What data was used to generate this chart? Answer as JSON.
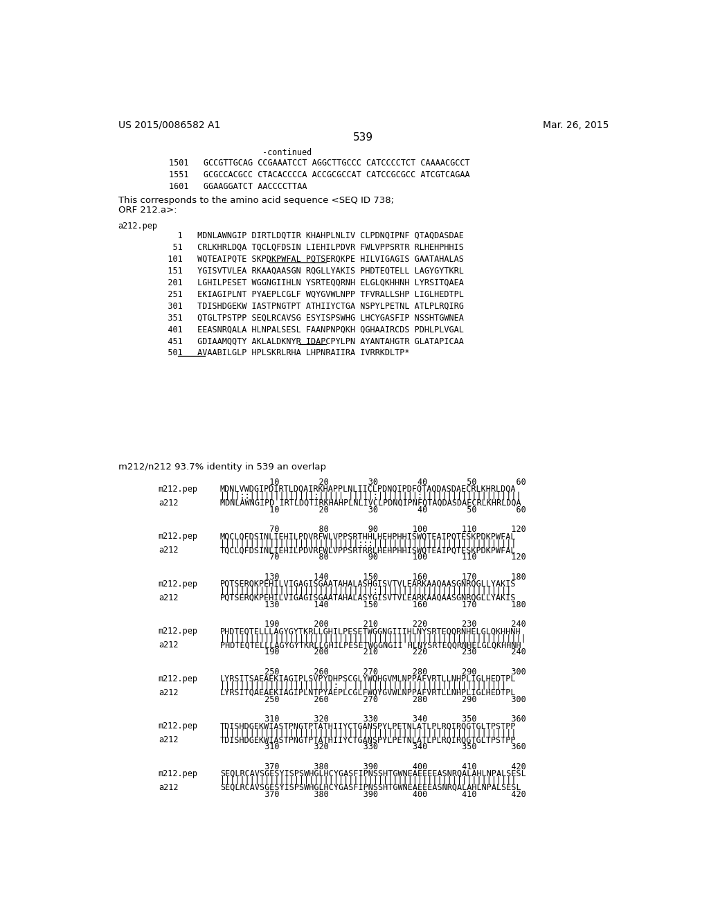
{
  "background_color": "#ffffff",
  "header_left": "US 2015/0086582 A1",
  "header_right": "Mar. 26, 2015",
  "page_number": "539",
  "continued_label": "-continued",
  "sequence_lines": [
    "1501   GCCGTTGCAG CCGAAATCCT AGGCTTGCCC CATCCCCTCT CAAAACGCCT",
    "1551   GCGCCACGCC CTACACCCCA ACCGCGCCAT CATCCGCGCC ATCGTCAGAA",
    "1601   GGAAGGATCT AACCCCTTAA"
  ],
  "paragraph_line1": "This corresponds to the amino acid sequence <SEQ ID 738;",
  "paragraph_line2": "ORF 212.a>:",
  "seq_label": "a212.pep",
  "seq_entries": [
    "     1   MDNLAWNGIP DIRTLDQTIR KHAHPLNLIV CLPDNQIPNF QTAQDASDAE",
    "    51   CRLKHRLDQA TQCLQFDSIN LIEHILPDVR FWLVPPSRTR RLHEHPHHIS",
    "   101   WQTEAIPQTE SKPDKPWFAL PQTSERQKPE HILVIGAGIS GAATAHALAS",
    "   151   YGISVTVLEA RKAAQAASGN RQGLLYAKIS PHDTEQTELL LAGYGYTKRL",
    "   201   LGHILPESET WGGNGIIHLN YSRTEQQRNH ELGLQKHHNH LYRSITQAEA",
    "   251   EKIAGIPLNT PYAEPLCGLF WQYGVWLNPP TFVRALLSHP LIGLHEDTPL",
    "   301   TDISHDGEKW IASTPNGTPT ATHIIYCTGA NSPYLPETNL ATLPLRQIRG",
    "   351   QTGLTPSTPP SEQLRCAVSG ESYISPSWHG LHCYGASFIP NSSHTGWNEA",
    "   401   EEASNRQALA HLNPALSESL FAANPNPQKH QGHAAIRCDS PDHLPLVGAL",
    "   451   GDIAAMQQTY AKLALDKNYR IDAPCPYLPN AYANTAHGTR GLATAPICAA",
    "   501   AVAABILGLP HPLSKRLRHA LHPNRAIIRA IVRRKDLTP*"
  ],
  "underline_info": [
    {
      "line_idx": 2,
      "segment": "HILVIGAGIS GAATAHALAS"
    },
    {
      "line_idx": 9,
      "segment": "GLATAPICAA"
    },
    {
      "line_idx": 10,
      "segment": "AVAABILGLP"
    }
  ],
  "identity_label": "m212/n212 93.7% identity in 539 an overlap",
  "alignment_blocks": [
    {
      "num_top": "          10        20        30        40        50        60",
      "pep_label": "m212.pep",
      "pep_seq": "MDNLVWDGIPDIRTLDQAIRKHAPPLNLIICLPDNQIPDFQTAQDASDAECRLKHRLDQA",
      "match": "||||::|||||||||||||:||||| |||||:||||||||:||||||||||||||||||||",
      "ref_label": "a212",
      "ref_seq": "MDNLAWNGIPD IRTLDQTIRKHAHPLNLIVCLPDNQIPNFQTAQDASDAECRLKHRLDQA",
      "num_bot": "          10        20        30        40        50        60"
    },
    {
      "num_top": "          70        80        90       100       110       120",
      "pep_label": "m212.pep",
      "pep_seq": "MQCLQFDSINLIEHILPDVRFWLVPPSRTHHLHEHPHHISWQTEAIPQTESKPDKPWFAL",
      "match": "||||||||||||||||||||||||||||:::|||||||||||||||||||||||||||||",
      "ref_label": "a212",
      "ref_seq": "TQCLQFDSINLIEHILPDVRFWLVPPSRTRRLHEHPHHISWQTEAIPQTESKPDKPWFAL",
      "num_bot": "          70        80        90       100       110       120"
    },
    {
      "num_top": "         130       140       150       160       170       180",
      "pep_label": "m212.pep",
      "pep_seq": "PQTSERQKPEHILVIGAGISGAATAHALASHGISVTVLEARKAAQAASGNRQGLLYAKIS",
      "match": "|||||||||||||||||||||||||||||||:|||||||||||||||||||||||||||",
      "ref_label": "a212",
      "ref_seq": "PQTSERQKPEHILVIGAGISGAATAHALASYGISVTVLEARKAAQAASGNRQGLLYAKIS",
      "num_bot": "         130       140       150       160       170       180"
    },
    {
      "num_top": "         190       200       210       220       230       240",
      "pep_label": "m212.pep",
      "pep_seq": "PHDTEQTELLLAGYGYTKRLLGHILPESETWGGNGIIIHLNYSRTEQQRNHELGLQKHHNH",
      "match": "||||||||||||||||||||||||||||||||||||||||||||||||||||||||||||||",
      "ref_label": "a212",
      "ref_seq": "PHDTEQTELLLAGYGYTKRLLGHILPESETWGGNGII HLNYSRTEQQRNHELGLQKHHNH",
      "num_bot": "         190       200       210       220       230       240"
    },
    {
      "num_top": "         250       260       270       280       290       300",
      "pep_label": "m212.pep",
      "pep_seq": "LYRSITSAEAEKIAGIPLSVPYDHPSCGLYWQHGVMLNPPAFVRTLLNHPLIGLHEDTPL",
      "match": "|||||||||||||||||||||||: | |||||||||||||||||||||||||||||||",
      "ref_label": "a212",
      "ref_seq": "LYRSITQAEAEKIAGIPLNTPYAEPLCGLFWQYGVWLNPPAFVRTLLNHPLIGLHEDTPL",
      "num_bot": "         250       260       270       280       290       300"
    },
    {
      "num_top": "         310       320       330       340       350       360",
      "pep_label": "m212.pep",
      "pep_seq": "TDISHDGEKWIASTPNGTPTATHIIYCTGANSPYLPETNLATLPLRQIRQGTGLTPSTPP",
      "match": "||||||||||||||||||||||||||||||||||||||||||||||||||||||||||||",
      "ref_label": "a212",
      "ref_seq": "TDISHDGEKWIASTPNGTPTATHIIYCTGANSPYLPETNLATLPLRQIRQGTGLTPSTPP",
      "num_bot": "         310       320       330       340       350       360"
    },
    {
      "num_top": "         370       380       390       400       410       420",
      "pep_label": "m212.pep",
      "pep_seq": "SEQLRCAVSGESYISPSWHGLHCYGASFIPNSSHTGWNEAEEEEASNRQALAHLNPALSESL",
      "match": "||||||||||||||||||||||||||||||||||||||||||||||||||||||||||||",
      "ref_label": "a212",
      "ref_seq": "SEQLRCAVSGESYISPSWHGLHCYGASFIPNSSHTGWNEAEEEASNRQALAHLNPALSESL",
      "num_bot": "         370       380       390       400       410       420"
    }
  ]
}
